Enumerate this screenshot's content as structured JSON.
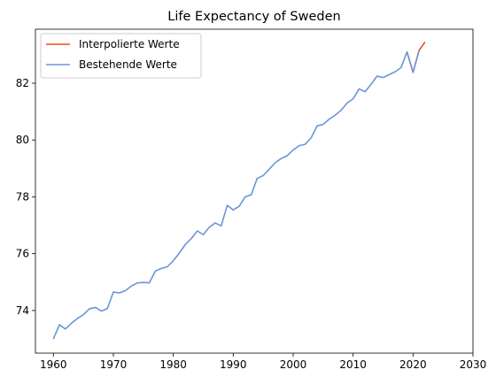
{
  "chart_data": {
    "type": "line",
    "title": "Life Expectancy of Sweden",
    "xlabel": "",
    "ylabel": "",
    "xlim": [
      1957,
      2030
    ],
    "ylim": [
      72.5,
      83.9
    ],
    "xticks": [
      1960,
      1970,
      1980,
      1990,
      2000,
      2010,
      2020,
      2030
    ],
    "yticks": [
      74,
      76,
      78,
      80,
      82
    ],
    "grid": false,
    "legend_position": "top-left",
    "series": [
      {
        "name": "Interpolierte Werte",
        "color": "#f04a17",
        "x": [
          2019,
          2020,
          2021,
          2022
        ],
        "y": [
          83.1,
          82.38,
          83.15,
          83.45
        ]
      },
      {
        "name": "Bestehende Werte",
        "color": "#6c95d8",
        "x": [
          1960,
          1961,
          1962,
          1963,
          1964,
          1965,
          1966,
          1967,
          1968,
          1969,
          1970,
          1971,
          1972,
          1973,
          1974,
          1975,
          1976,
          1977,
          1978,
          1979,
          1980,
          1981,
          1982,
          1983,
          1984,
          1985,
          1986,
          1987,
          1988,
          1989,
          1990,
          1991,
          1992,
          1993,
          1994,
          1995,
          1996,
          1997,
          1998,
          1999,
          2000,
          2001,
          2002,
          2003,
          2004,
          2005,
          2006,
          2007,
          2008,
          2009,
          2010,
          2011,
          2012,
          2013,
          2014,
          2015,
          2016,
          2017,
          2018,
          2019,
          2020,
          2021
        ],
        "y": [
          73.0,
          73.5,
          73.35,
          73.55,
          73.72,
          73.85,
          74.06,
          74.11,
          73.98,
          74.07,
          74.65,
          74.62,
          74.7,
          74.86,
          74.97,
          74.99,
          74.97,
          75.39,
          75.48,
          75.54,
          75.75,
          76.02,
          76.32,
          76.53,
          76.8,
          76.67,
          76.93,
          77.08,
          76.98,
          77.7,
          77.54,
          77.67,
          78.0,
          78.07,
          78.65,
          78.75,
          78.97,
          79.2,
          79.35,
          79.45,
          79.65,
          79.8,
          79.85,
          80.08,
          80.5,
          80.55,
          80.73,
          80.87,
          81.05,
          81.3,
          81.45,
          81.8,
          81.7,
          81.96,
          82.25,
          82.2,
          82.3,
          82.4,
          82.55,
          83.1,
          82.38,
          83.15
        ]
      }
    ]
  }
}
